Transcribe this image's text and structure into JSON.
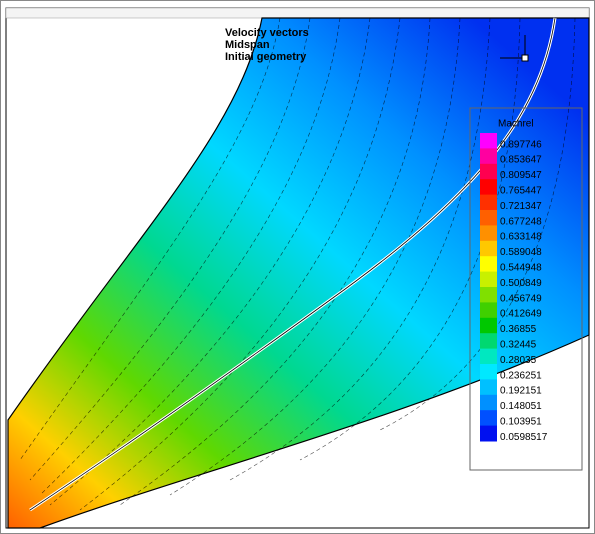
{
  "annotations": [
    "Velocity vectors",
    "Midspan",
    "Initial geometry"
  ],
  "legend": {
    "title": "Machrel",
    "levels": [
      {
        "label": "0.897746",
        "color": "#ff00ff"
      },
      {
        "label": "0.853647",
        "color": "#ff00a0"
      },
      {
        "label": "0.809547",
        "color": "#ff0050"
      },
      {
        "label": "0.765447",
        "color": "#ff0000"
      },
      {
        "label": "0.721347",
        "color": "#ff3000"
      },
      {
        "label": "0.677248",
        "color": "#ff6000"
      },
      {
        "label": "0.633148",
        "color": "#ff9000"
      },
      {
        "label": "0.589048",
        "color": "#ffc800"
      },
      {
        "label": "0.544948",
        "color": "#ffff00"
      },
      {
        "label": "0.500849",
        "color": "#c8f000"
      },
      {
        "label": "0.456749",
        "color": "#80e000"
      },
      {
        "label": "0.412649",
        "color": "#40d000"
      },
      {
        "label": "0.36855",
        "color": "#00c800"
      },
      {
        "label": "0.32445",
        "color": "#00d870"
      },
      {
        "label": "0.28035",
        "color": "#00e8c0"
      },
      {
        "label": "0.236251",
        "color": "#00e8ff"
      },
      {
        "label": "0.192151",
        "color": "#00c0ff"
      },
      {
        "label": "0.148051",
        "color": "#0090ff"
      },
      {
        "label": "0.103951",
        "color": "#0050ff"
      },
      {
        "label": "0.0598517",
        "color": "#0010f0"
      }
    ]
  }
}
